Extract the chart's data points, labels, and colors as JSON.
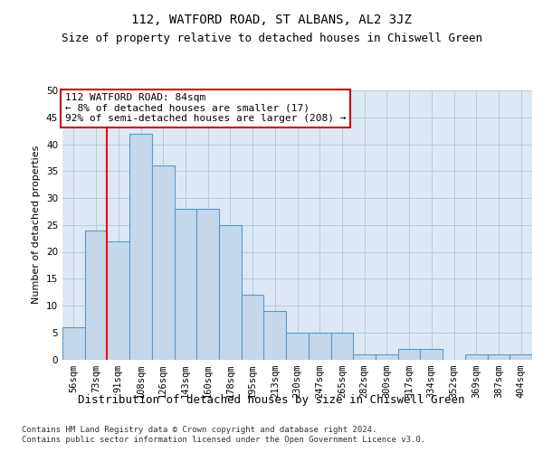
{
  "title": "112, WATFORD ROAD, ST ALBANS, AL2 3JZ",
  "subtitle": "Size of property relative to detached houses in Chiswell Green",
  "xlabel": "Distribution of detached houses by size in Chiswell Green",
  "ylabel": "Number of detached properties",
  "bin_labels": [
    "56sqm",
    "73sqm",
    "91sqm",
    "108sqm",
    "126sqm",
    "143sqm",
    "160sqm",
    "178sqm",
    "195sqm",
    "213sqm",
    "230sqm",
    "247sqm",
    "265sqm",
    "282sqm",
    "300sqm",
    "317sqm",
    "334sqm",
    "352sqm",
    "369sqm",
    "387sqm",
    "404sqm"
  ],
  "bar_values": [
    6,
    24,
    22,
    42,
    36,
    28,
    28,
    25,
    12,
    9,
    5,
    5,
    5,
    1,
    1,
    2,
    2,
    0,
    1,
    1,
    1
  ],
  "bar_color": "#c5d8eb",
  "bar_edgecolor": "#5599cc",
  "red_line_x": 1.5,
  "ylim": [
    0,
    50
  ],
  "yticks": [
    0,
    5,
    10,
    15,
    20,
    25,
    30,
    35,
    40,
    45,
    50
  ],
  "annotation_text": "112 WATFORD ROAD: 84sqm\n← 8% of detached houses are smaller (17)\n92% of semi-detached houses are larger (208) →",
  "annotation_box_color": "#ffffff",
  "annotation_box_edgecolor": "#cc0000",
  "grid_color": "#aec6d8",
  "background_color": "#dce9f5",
  "footer_text": "Contains HM Land Registry data © Crown copyright and database right 2024.\nContains public sector information licensed under the Open Government Licence v3.0.",
  "title_fontsize": 10,
  "subtitle_fontsize": 9,
  "ylabel_fontsize": 8,
  "xlabel_fontsize": 9,
  "tick_fontsize": 7.5,
  "footer_fontsize": 6.5,
  "annot_fontsize": 8
}
